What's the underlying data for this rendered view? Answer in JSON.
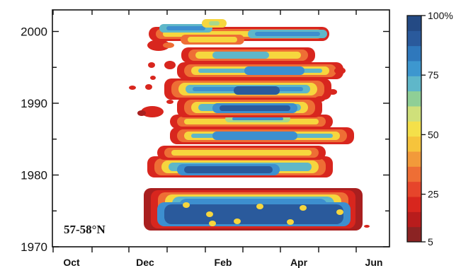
{
  "chart_data": {
    "type": "heatmap",
    "title": "",
    "annotation": "57-58°N",
    "xlabel": "",
    "ylabel": "",
    "x_tick_labels": [
      "Oct",
      "Dec",
      "Feb",
      "Apr",
      "Jun"
    ],
    "y_ticks": [
      1970,
      1980,
      1990,
      2000
    ],
    "y_range": [
      1970,
      2003
    ],
    "colorbar": {
      "tick_labels": [
        "100%",
        "75",
        "50",
        "25",
        "5"
      ],
      "tick_values": [
        100,
        75,
        50,
        25,
        5
      ],
      "range": [
        5,
        100
      ],
      "colors": [
        "#8b2323",
        "#b81c1c",
        "#d8261e",
        "#e6452b",
        "#ee6e35",
        "#f29a3a",
        "#f6c43c",
        "#f4e04a",
        "#cfe07a",
        "#8fcf96",
        "#5fb7c9",
        "#3d97cf",
        "#2f78bc",
        "#2a5a9c",
        "#244a84"
      ]
    },
    "grid": false
  }
}
